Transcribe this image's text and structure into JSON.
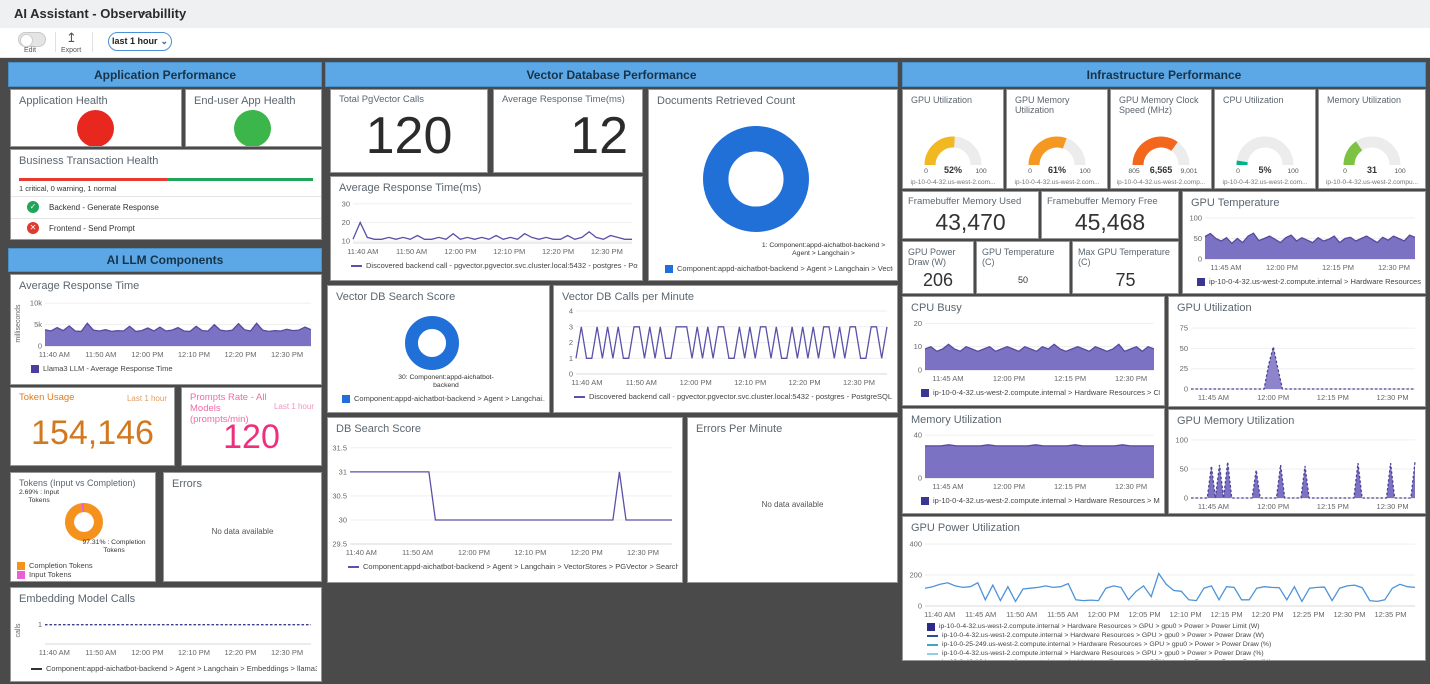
{
  "titlebar": {
    "title": "AI Assistant - Observabillity"
  },
  "toolbar": {
    "edit": "Edit",
    "export": "Export",
    "time_range": "last 1 hour"
  },
  "sections": {
    "app_perf": "Application Performance",
    "ai_llm": "AI LLM Components",
    "vector_db": "Vector Database Performance",
    "infra": "Infrastructure Performance"
  },
  "left": {
    "app_health": {
      "title": "Application Health",
      "status_color": "#e8281e"
    },
    "euapp_health": {
      "title": "End-user App Health",
      "status_color": "#3cb54a"
    },
    "bt_health": {
      "title": "Business Transaction Health",
      "summary": "1 critical, 0 warning, 1 normal",
      "rows": [
        {
          "label": "Backend - Generate Response",
          "status": "normal"
        },
        {
          "label": "Frontend - Send Prompt",
          "status": "critical"
        }
      ]
    },
    "avg_response": {
      "title": "Average Response Time"
    },
    "token_usage": {
      "title": "Token Usage",
      "range": "Last 1 hour",
      "value": "154,146"
    },
    "prompts_rate": {
      "title": "Prompts Rate - All Models (prompts/min)",
      "range": "Last 1 hour",
      "value": "120"
    },
    "tokens_split": {
      "title": "Tokens (Input vs Completion)",
      "label_input": "2.69% : Input Tokens",
      "label_completion": "97.31% : Completion Tokens"
    },
    "errors": {
      "title": "Errors",
      "empty": "No data available"
    },
    "embedding": {
      "title": "Embedding Model Calls"
    }
  },
  "middle": {
    "pgvector_calls": {
      "title": "Total PgVector Calls",
      "value": "120"
    },
    "avg_rt_big": {
      "title": "Average Response Time(ms)",
      "value": "12"
    },
    "documents": {
      "title": "Documents Retrieved Count",
      "annotation": "1: Component:appd-aichatbot-backend > Agent > Langchain >"
    },
    "avg_rt_chart": {
      "title": "Average Response Time(ms)"
    },
    "score_donut": {
      "title": "Vector DB Search Score",
      "annotation": "30: Component:appd-aichatbot-backend"
    },
    "calls_per_min": {
      "title": "Vector DB Calls per Minute"
    },
    "db_score": {
      "title": "DB Search Score"
    },
    "errors_pm": {
      "title": "Errors Per Minute",
      "empty": "No data available"
    }
  },
  "right": {
    "fb_used": {
      "title": "Framebuffer Memory Used",
      "value": "43,470"
    },
    "fb_free": {
      "title": "Framebuffer Memory Free",
      "value": "45,468"
    },
    "power_draw": {
      "title": "GPU Power Draw (W)",
      "value": "206"
    },
    "gpu_temp_c": {
      "title": "GPU Temperature (C)",
      "value": "50"
    },
    "max_gpu_temp": {
      "title": "Max GPU Temperature (C)",
      "value": "75"
    },
    "gpu_temp_chart": {
      "title": "GPU Temperature"
    },
    "cpu_busy": {
      "title": "CPU Busy"
    },
    "gpu_util_chart": {
      "title": "GPU Utilization"
    },
    "mem_util_chart": {
      "title": "Memory Utilization"
    },
    "gpu_mem_chart": {
      "title": "GPU Memory Utilization"
    },
    "gpu_power": {
      "title": "GPU Power Utilization"
    }
  },
  "chart_data": {
    "llm_response": {
      "type": "area",
      "color": "#554a9e",
      "fill": "#7b72c4",
      "ylabel": "milliseconds",
      "ylim": [
        0,
        10500
      ],
      "yticks": [
        [
          0,
          "0"
        ],
        [
          5000,
          "5k"
        ],
        [
          10000,
          "10k"
        ]
      ],
      "xticks": [
        "11:40 AM",
        "11:50 AM",
        "12:00 PM",
        "12:10 PM",
        "12:20 PM",
        "12:30 PM"
      ],
      "x0": 0.035,
      "xspan": 0.875,
      "values": [
        3800,
        3500,
        4300,
        3600,
        4700,
        3500,
        3400,
        5300,
        3700,
        3500,
        3800,
        3400,
        3600,
        3500,
        4600,
        3400,
        3600,
        4200,
        3500,
        4400,
        3500,
        3700,
        4300,
        3500,
        3400,
        4600,
        3600,
        3500,
        5000,
        3700,
        3500,
        3700,
        5200,
        3800,
        3500,
        5300,
        3700,
        3400,
        3600,
        3500,
        3900,
        3600,
        3700,
        4400,
        3800
      ],
      "legend": [
        {
          "marker": "square",
          "color": "#4b3f9e",
          "label": "Llama3 LLM - Average Response Time"
        }
      ]
    },
    "pg_response": {
      "type": "line",
      "color": "#5a51a8",
      "ylim": [
        9,
        31
      ],
      "yticks": [
        [
          10,
          "10"
        ],
        [
          20,
          "20"
        ],
        [
          30,
          "30"
        ]
      ],
      "xticks": [
        "11:40 AM",
        "11:50 AM",
        "12:00 PM",
        "12:10 PM",
        "12:20 PM",
        "12:30 PM"
      ],
      "x0": 0.035,
      "xspan": 0.875,
      "values": [
        11,
        20,
        12,
        11,
        11,
        12,
        11,
        12,
        11,
        13,
        11,
        11,
        12,
        11,
        14,
        11,
        12,
        11,
        12,
        11,
        13,
        11,
        12,
        11,
        14,
        12,
        11,
        12,
        11,
        11,
        13,
        11,
        12,
        15,
        12,
        11,
        13,
        12,
        11,
        11
      ],
      "legend": [
        {
          "marker": "line",
          "color": "#5a51a8",
          "label": "Discovered backend call - pgvector.pgvector.svc.cluster.local:5432 - postgres - PostgreSQL ..."
        }
      ]
    },
    "vdb_calls": {
      "type": "line",
      "color": "#5a51a8",
      "ylim": [
        0,
        4
      ],
      "yticks": [
        [
          0,
          "0"
        ],
        [
          1,
          "1"
        ],
        [
          2,
          "2"
        ],
        [
          3,
          "3"
        ],
        [
          4,
          "4"
        ]
      ],
      "xticks": [
        "11:40 AM",
        "11:50 AM",
        "12:00 PM",
        "12:10 PM",
        "12:20 PM",
        "12:30 PM"
      ],
      "x0": 0.035,
      "xspan": 0.875,
      "values": [
        1,
        3,
        1,
        1,
        3,
        1,
        3,
        1,
        3,
        1,
        1,
        3,
        3,
        1,
        3,
        1,
        3,
        1,
        1,
        3,
        3,
        3,
        1,
        3,
        1,
        3,
        1,
        3,
        3,
        1,
        1,
        3,
        1,
        3,
        1,
        3,
        3,
        1,
        3,
        1,
        1,
        3,
        1,
        3,
        1,
        3,
        1,
        3,
        3,
        1,
        3,
        1,
        3,
        3,
        1,
        1,
        3,
        3,
        1,
        3
      ],
      "legend": [
        {
          "marker": "line",
          "color": "#5a51a8",
          "label": "Discovered backend call - pgvector.pgvector.svc.cluster.local:5432 - postgres - PostgreSQL > Calls per ..."
        }
      ]
    },
    "db_score": {
      "type": "line",
      "color": "#5a51a8",
      "ylim": [
        29.5,
        31.6
      ],
      "yticks": [
        [
          29.5,
          "29.5"
        ],
        [
          30,
          "30"
        ],
        [
          30.5,
          "30.5"
        ],
        [
          31,
          "31"
        ],
        [
          31.5,
          "31.5"
        ]
      ],
      "xticks": [
        "11:40 AM",
        "11:50 AM",
        "12:00 PM",
        "12:10 PM",
        "12:20 PM",
        "12:30 PM"
      ],
      "x0": 0.035,
      "xspan": 0.875,
      "values": [
        31,
        31,
        31,
        31,
        31,
        31,
        31,
        31,
        31,
        31,
        31,
        31,
        31,
        30,
        30,
        30,
        30,
        30,
        30,
        30,
        30,
        30,
        30,
        30,
        30,
        30,
        30,
        30,
        30,
        30,
        30,
        30,
        30,
        30,
        30,
        30,
        30,
        30,
        30,
        30,
        30,
        31,
        30,
        30,
        30,
        30,
        30,
        30,
        30,
        30
      ],
      "legend": [
        {
          "marker": "line",
          "color": "#5a51a8",
          "label": "Component:appd-aichatbot-backend > Agent > Langchain > VectorStores > PGVector > Search Score"
        }
      ]
    },
    "embedding_calls": {
      "type": "line",
      "color": "#3d3d8f",
      "dashed": true,
      "ylabel": "calls",
      "ylim": [
        0,
        1.4
      ],
      "yticks": [
        [
          1,
          "1"
        ]
      ],
      "xticks": [
        "11:40 AM",
        "11:50 AM",
        "12:00 PM",
        "12:10 PM",
        "12:20 PM",
        "12:30 PM"
      ],
      "x0": 0.035,
      "xspan": 0.875,
      "values": [
        1,
        1,
        1,
        1,
        1,
        1,
        1,
        1,
        1,
        1
      ],
      "legend": [
        {
          "marker": "line",
          "color": "#333333",
          "label": "Component:appd-aichatbot-backend > Agent > Langchain > Embeddings > llama3_8b > ..."
        }
      ]
    },
    "documents_donut": {
      "type": "donut",
      "slices": [
        {
          "pct": 100,
          "color": "#2170d8"
        }
      ],
      "legend": [
        {
          "marker": "square",
          "color": "#2170d8",
          "label": "Component:appd-aichatbot-backend > Agent > Langchain > Vector..."
        }
      ]
    },
    "score_donut": {
      "type": "donut",
      "slices": [
        {
          "pct": 100,
          "color": "#2170d8"
        }
      ],
      "legend": [
        {
          "marker": "square",
          "color": "#2170d8",
          "label": "Component:appd-aichatbot-backend > Agent > Langchai..."
        }
      ]
    },
    "tokens_donut": {
      "type": "donut",
      "slices": [
        {
          "pct": 97.31,
          "color": "#f5921e"
        },
        {
          "pct": 2.69,
          "color": "#e85fd6"
        }
      ],
      "legend": [
        {
          "marker": "square",
          "color": "#f5921e",
          "label": "Completion Tokens"
        },
        {
          "marker": "square",
          "color": "#e85fd6",
          "label": "Input Tokens"
        }
      ]
    },
    "gauge_gpu_util": {
      "type": "gauge",
      "pct": 52,
      "color": "#f2b822",
      "min": "0",
      "max": "100",
      "value": "52%",
      "footer": "ip-10-0-4-32.us-west-2.com..."
    },
    "gauge_gpu_mem": {
      "type": "gauge",
      "pct": 61,
      "color": "#f59822",
      "min": "0",
      "max": "100",
      "value": "61%",
      "footer": "ip-10-0-4-32.us-west-2.com..."
    },
    "gauge_clock": {
      "type": "gauge",
      "pct": 70,
      "color": "#f2671c",
      "min": "805",
      "max": "9,001",
      "value": "6,565",
      "footer": "ip-10-0-4-32.us-west-2.comp..."
    },
    "gauge_cpu": {
      "type": "gauge",
      "pct": 5,
      "color": "#00b287",
      "min": "0",
      "max": "100",
      "value": "5%",
      "footer": "ip-10-0-4-32.us-west-2.com..."
    },
    "gauge_mem": {
      "type": "gauge",
      "pct": 31,
      "color": "#7dc242",
      "min": "0",
      "max": "100",
      "value": "31",
      "footer": "ip-10-0-4-32.us-west-2.compu..."
    },
    "gpu_temp": {
      "type": "area",
      "color": "#554a9e",
      "fill": "#7b72c4",
      "ylim": [
        0,
        105
      ],
      "yticks": [
        [
          0,
          "0"
        ],
        [
          50,
          "50"
        ],
        [
          100,
          "100"
        ]
      ],
      "xticks": [
        "11:45 AM",
        "12:00 PM",
        "12:15 PM",
        "12:30 PM"
      ],
      "x0": 0.1,
      "xspan": 0.8,
      "values": [
        55,
        62,
        50,
        44,
        52,
        38,
        50,
        40,
        56,
        63,
        45,
        50,
        56,
        48,
        40,
        52,
        58,
        44,
        52,
        46,
        40,
        52,
        44,
        48,
        56,
        40,
        50,
        53,
        44,
        50,
        56,
        48,
        40,
        53,
        46,
        56,
        50,
        44,
        58,
        53
      ],
      "legend": [
        {
          "marker": "square",
          "color": "#3b3690",
          "label": "ip-10-0-4-32.us-west-2.compute.internal > Hardware Resources > G..."
        }
      ]
    },
    "cpu_busy": {
      "type": "area",
      "color": "#554a9e",
      "fill": "#7b72c4",
      "ylim": [
        0,
        21
      ],
      "yticks": [
        [
          0,
          "0"
        ],
        [
          10,
          "10"
        ],
        [
          20,
          "20"
        ]
      ],
      "xticks": [
        "11:45 AM",
        "12:00 PM",
        "12:15 PM",
        "12:30 PM"
      ],
      "x0": 0.1,
      "xspan": 0.8,
      "values": [
        9,
        10,
        8,
        9,
        11,
        9,
        8,
        10,
        9,
        8,
        9,
        10,
        8,
        9,
        10,
        9,
        8,
        10,
        9,
        8,
        10,
        9,
        11,
        9,
        8,
        9,
        10,
        9,
        8,
        10,
        9,
        8,
        9,
        11,
        8,
        9,
        10,
        8,
        10,
        9
      ],
      "legend": [
        {
          "marker": "square",
          "color": "#3b3690",
          "label": "ip-10-0-4-32.us-west-2.compute.internal > Hardware Resources > CPU ..."
        }
      ]
    },
    "mem_util": {
      "type": "area",
      "color": "#554a9e",
      "fill": "#7b72c4",
      "ylim": [
        0,
        42
      ],
      "yticks": [
        [
          0,
          "0"
        ],
        [
          40,
          "40"
        ]
      ],
      "xticks": [
        "11:45 AM",
        "12:00 PM",
        "12:15 PM",
        "12:30 PM"
      ],
      "x0": 0.1,
      "xspan": 0.8,
      "values": [
        30,
        30,
        30,
        31,
        30,
        30,
        30,
        30,
        31,
        30,
        30,
        30,
        30,
        30,
        31,
        30,
        30,
        30,
        30,
        31,
        30,
        30,
        30,
        30,
        30,
        31,
        30,
        30,
        30,
        30
      ],
      "legend": [
        {
          "marker": "square",
          "color": "#3b3690",
          "label": "ip-10-0-4-32.us-west-2.compute.internal > Hardware Resources > Mem..."
        }
      ]
    },
    "gpu_util_line": {
      "type": "line",
      "color": "#4d4294",
      "fill": "#8d84cc",
      "dashed": true,
      "ylim": [
        0,
        80
      ],
      "yticks": [
        [
          0,
          "0"
        ],
        [
          25,
          "25"
        ],
        [
          50,
          "50"
        ],
        [
          75,
          "75"
        ]
      ],
      "xticks": [
        "11:45 AM",
        "12:00 PM",
        "12:15 PM",
        "12:30 PM"
      ],
      "x0": 0.1,
      "xspan": 0.8,
      "values": [
        0,
        0,
        0,
        0,
        0,
        0,
        0,
        0,
        0,
        0,
        0,
        0,
        0,
        0,
        0,
        0,
        0,
        30,
        52,
        25,
        0,
        0,
        0,
        0,
        0,
        0,
        0,
        0,
        0,
        0,
        0,
        0,
        0,
        0,
        0,
        0,
        0,
        0,
        0,
        0,
        0,
        0,
        0,
        0,
        0,
        0,
        0,
        0,
        0,
        0
      ]
    },
    "gpu_mem_util": {
      "type": "line",
      "color": "#4d4294",
      "fill": "#7b72c4",
      "dashed": true,
      "ylim": [
        0,
        105
      ],
      "yticks": [
        [
          0,
          "0"
        ],
        [
          50,
          "50"
        ],
        [
          100,
          "100"
        ]
      ],
      "xticks": [
        "11:45 AM",
        "12:00 PM",
        "12:15 PM",
        "12:30 PM"
      ],
      "x0": 0.1,
      "xspan": 0.8,
      "values": [
        0,
        0,
        0,
        0,
        0,
        55,
        0,
        57,
        0,
        62,
        0,
        0,
        0,
        0,
        0,
        0,
        48,
        0,
        0,
        0,
        0,
        0,
        57,
        0,
        0,
        0,
        0,
        0,
        55,
        0,
        0,
        0,
        0,
        0,
        0,
        0,
        0,
        0,
        0,
        0,
        0,
        60,
        0,
        0,
        0,
        0,
        0,
        0,
        0,
        60,
        0,
        0,
        0,
        0,
        0,
        62
      ]
    },
    "gpu_power": {
      "type": "line",
      "color": "#4e93d9",
      "ylim": [
        0,
        420
      ],
      "yticks": [
        [
          0,
          "0"
        ],
        [
          200,
          "200"
        ],
        [
          400,
          "400"
        ]
      ],
      "xticks": [
        "11:40 AM",
        "11:45 AM",
        "11:50 AM",
        "11:55 AM",
        "12:00 PM",
        "12:05 PM",
        "12:10 PM",
        "12:15 PM",
        "12:20 PM",
        "12:25 PM",
        "12:30 PM",
        "12:35 PM"
      ],
      "x0": 0.03,
      "xspan": 0.92,
      "values": [
        115,
        125,
        140,
        150,
        130,
        120,
        125,
        150,
        40,
        135,
        35,
        125,
        30,
        110,
        115,
        120,
        130,
        120,
        125,
        145,
        40,
        35,
        38,
        35,
        115,
        130,
        120,
        40,
        95,
        130,
        60,
        210,
        140,
        100,
        95,
        40,
        35,
        115,
        130,
        40,
        125,
        120,
        40,
        40,
        115,
        125,
        120,
        118,
        40,
        125,
        30,
        115,
        120,
        122,
        35,
        115,
        130,
        135,
        118,
        35,
        30,
        40,
        115,
        140,
        125,
        120
      ],
      "legend": [
        {
          "marker": "square",
          "color": "#2d2a8a",
          "label": "ip-10-0-4-32.us-west-2.compute.internal > Hardware Resources > GPU > gpu0 > Power > Power Limit (W)"
        },
        {
          "marker": "line",
          "color": "#27518f",
          "label": "ip-10-0-4-32.us-west-2.compute.internal > Hardware Resources > GPU > gpu0 > Power > Power Draw (W)"
        },
        {
          "marker": "line",
          "color": "#3fa7c4",
          "label": "ip-10-0-25-249.us-west-2.compute.internal > Hardware Resources > GPU > gpu0 > Power > Power Draw (%)"
        },
        {
          "marker": "line",
          "color": "#8fd0e8",
          "label": "ip-10-0-4-32.us-west-2.compute.internal > Hardware Resources > GPU > gpu0 > Power > Power Draw (%)"
        },
        {
          "marker": "line",
          "color": "#c8c8c8",
          "label": "ip-10-0-42-124.us-west-2.compute.internal > Hardware Resources > GPU > gpu0 > Power > Power Draw (%)"
        }
      ]
    }
  }
}
